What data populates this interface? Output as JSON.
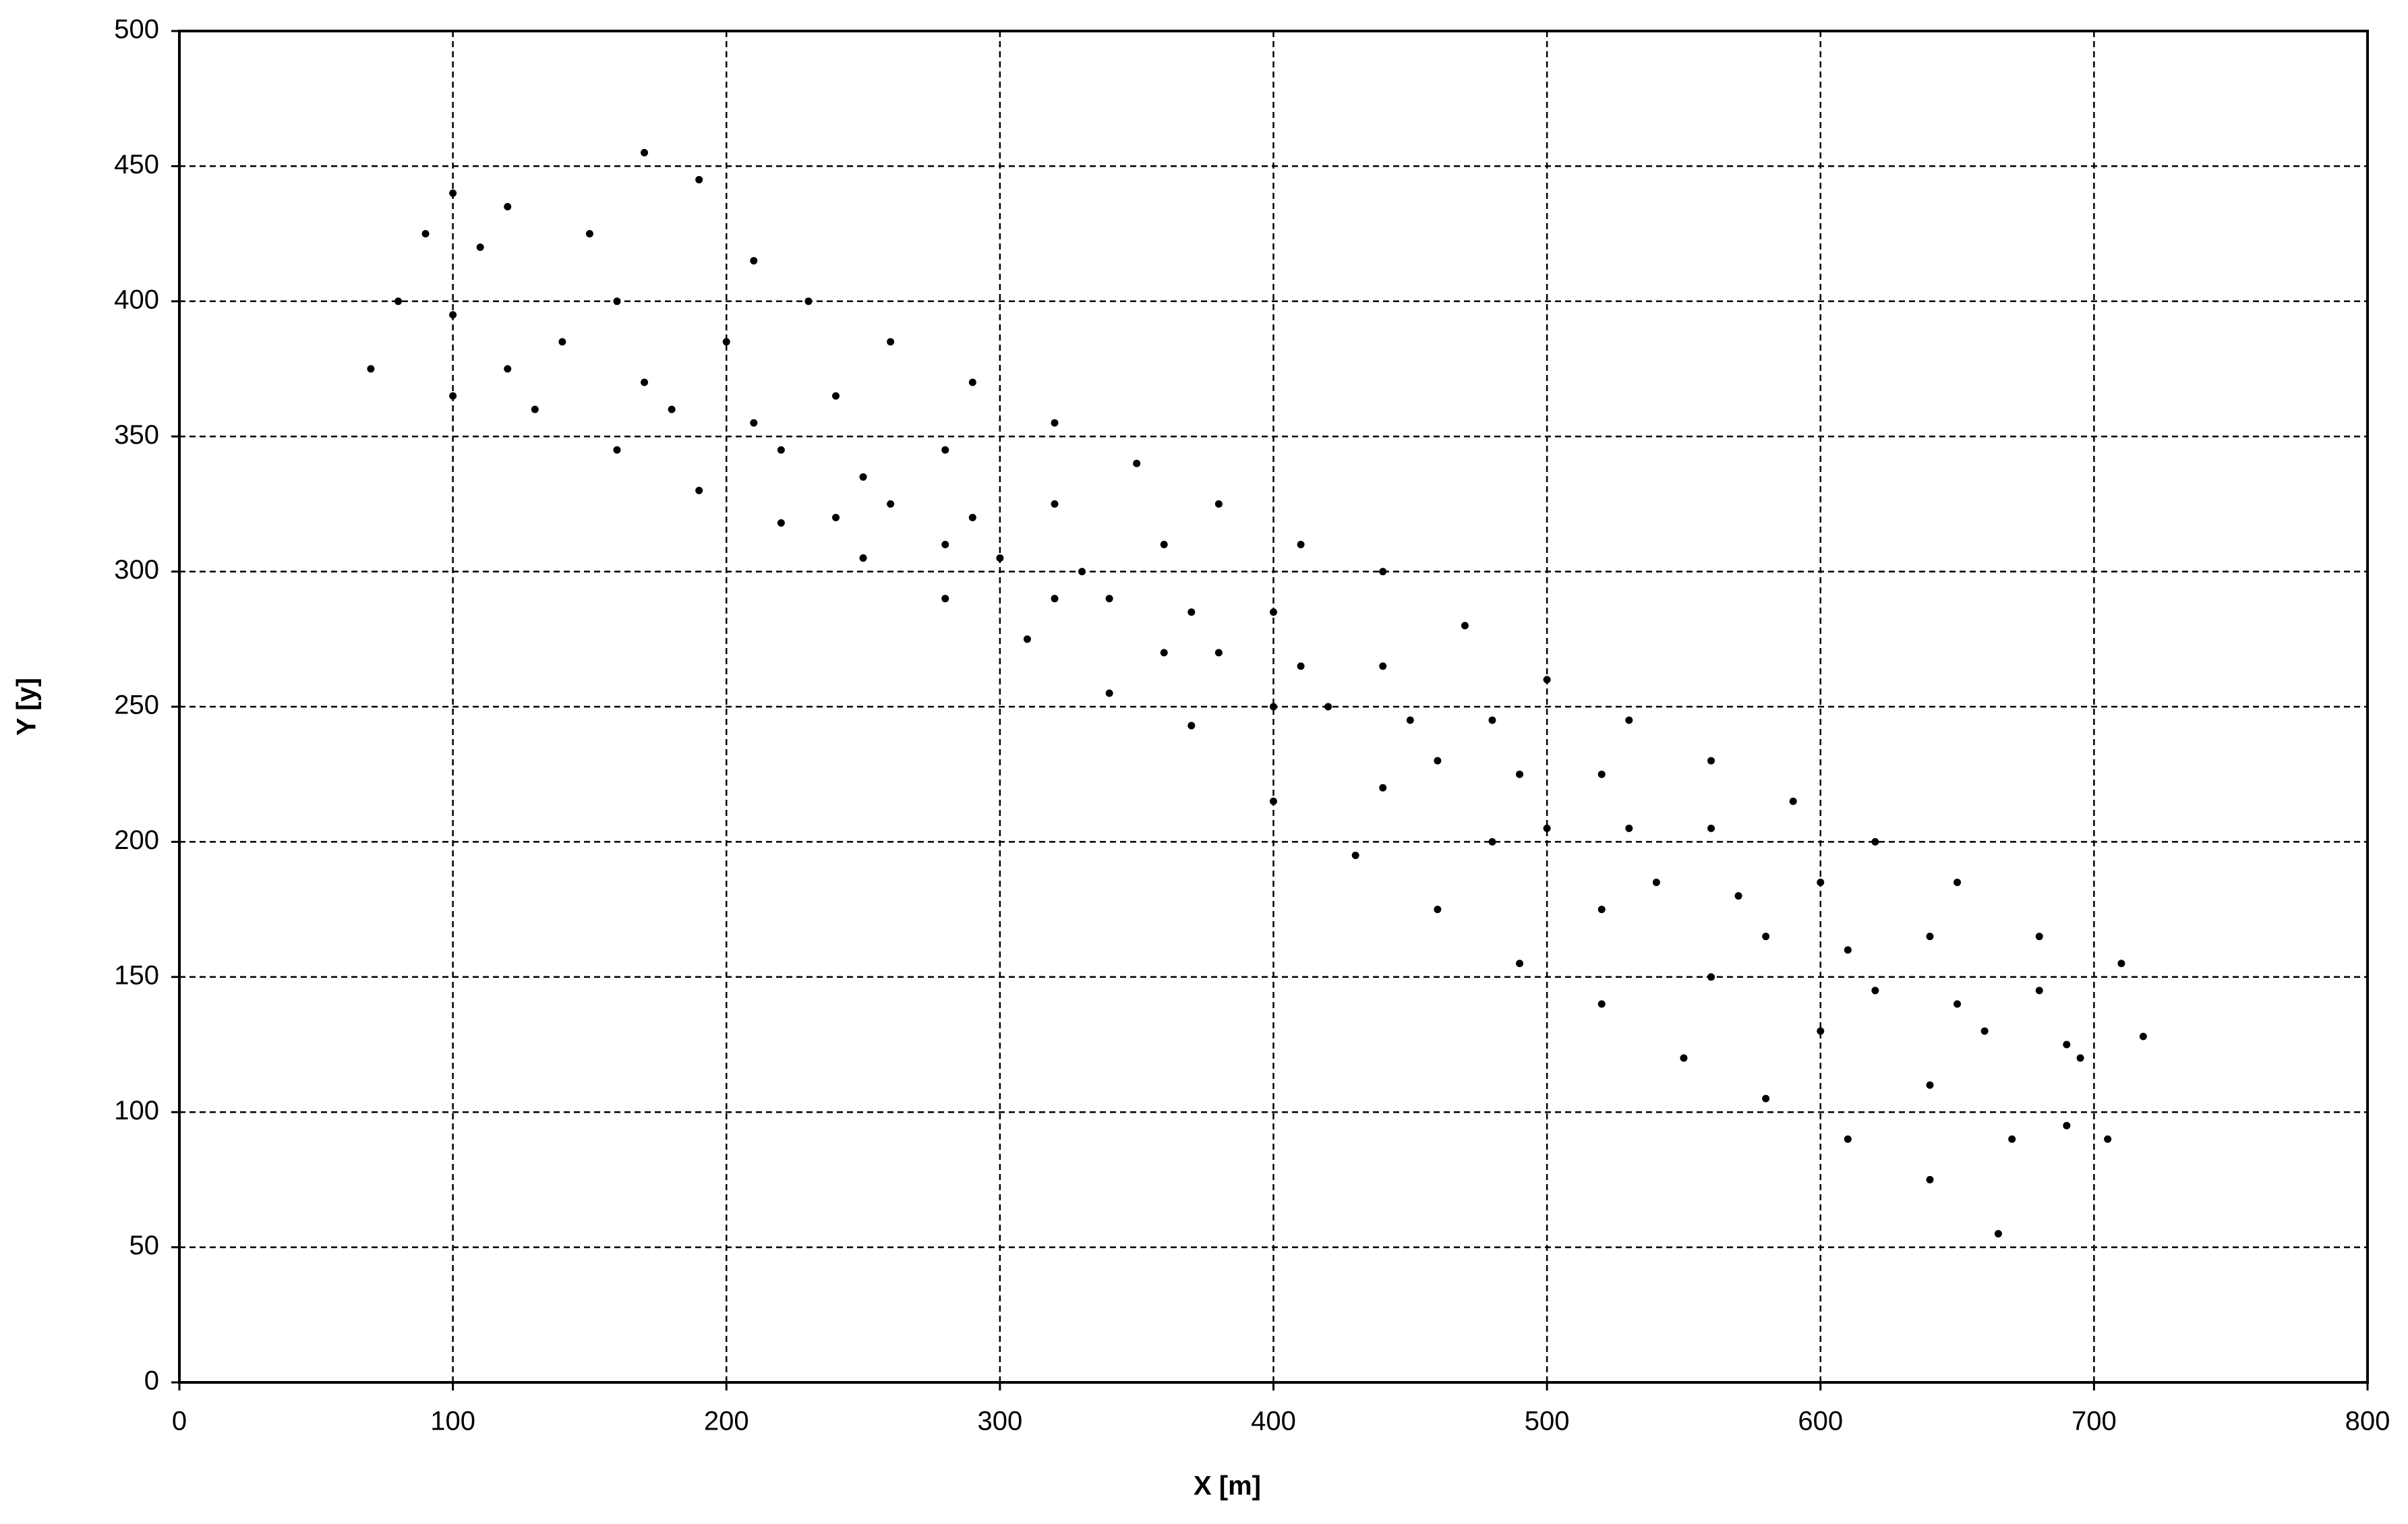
{
  "chart_data": {
    "type": "scatter",
    "xlabel": "X  [m]",
    "ylabel": "Y [y]",
    "color": "#000000",
    "grid": true,
    "xlim": [
      0,
      800
    ],
    "xticks": [
      0,
      100,
      200,
      300,
      400,
      500,
      600,
      700,
      800
    ],
    "ylim": [
      0,
      500
    ],
    "yticks": [
      0,
      50,
      100,
      150,
      200,
      250,
      300,
      350,
      400,
      450,
      500
    ],
    "x": [
      70,
      80,
      90,
      100,
      120,
      150,
      170,
      190,
      210,
      230,
      260,
      290,
      320,
      350,
      380,
      410,
      440,
      470,
      500,
      530,
      560,
      590,
      620,
      650,
      680,
      710,
      100,
      130,
      160,
      190,
      220,
      250,
      280,
      310,
      340,
      370,
      400,
      430,
      460,
      490,
      520,
      550,
      580,
      610,
      640,
      665,
      690,
      705,
      718,
      100,
      140,
      180,
      220,
      260,
      300,
      340,
      380,
      420,
      460,
      500,
      540,
      580,
      620,
      660,
      695,
      110,
      160,
      200,
      240,
      280,
      320,
      360,
      400,
      440,
      480,
      520,
      560,
      600,
      640,
      680,
      120,
      170,
      210,
      250,
      290,
      330,
      370,
      410,
      450,
      490,
      530,
      570,
      610,
      650,
      690,
      240,
      280,
      320,
      360,
      400,
      440,
      480,
      520,
      560,
      600,
      640,
      670
    ],
    "values": [
      375,
      400,
      425,
      440,
      435,
      425,
      455,
      445,
      415,
      400,
      385,
      370,
      355,
      340,
      325,
      310,
      300,
      280,
      260,
      245,
      230,
      215,
      200,
      185,
      165,
      155,
      365,
      360,
      345,
      330,
      318,
      305,
      290,
      275,
      255,
      243,
      215,
      195,
      175,
      155,
      140,
      120,
      105,
      90,
      75,
      55,
      95,
      90,
      128,
      395,
      385,
      360,
      345,
      325,
      305,
      290,
      270,
      250,
      230,
      205,
      185,
      165,
      145,
      130,
      120,
      420,
      400,
      385,
      365,
      345,
      325,
      310,
      285,
      265,
      245,
      225,
      205,
      185,
      165,
      145,
      375,
      370,
      355,
      335,
      320,
      300,
      285,
      265,
      245,
      225,
      205,
      180,
      160,
      140,
      125,
      320,
      310,
      290,
      270,
      250,
      220,
      200,
      175,
      150,
      130,
      110,
      90
    ]
  }
}
